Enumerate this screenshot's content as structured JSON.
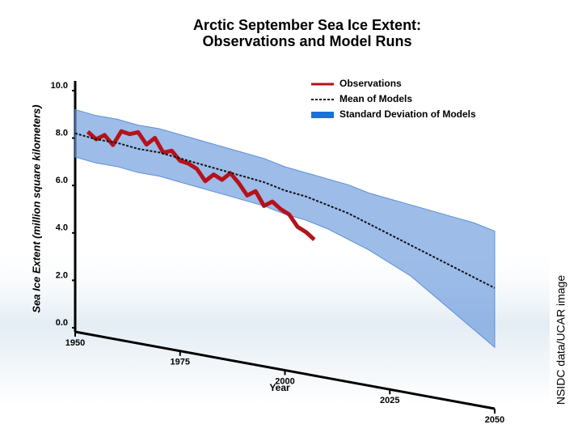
{
  "chart_data": {
    "type": "line",
    "title": [
      "Arctic September Sea Ice Extent:",
      "Observations and Model Runs"
    ],
    "xlabel": "Year",
    "ylabel": "Sea Ice Extent (million square kilometers)",
    "credit": "NSIDC data/UCAR image",
    "xlim": [
      1950,
      2050
    ],
    "xticks": [
      1950,
      1975,
      2000,
      2025,
      2050
    ],
    "ylim": [
      0,
      10
    ],
    "yticks": [
      {
        "value": 0,
        "label": "0.0"
      },
      {
        "value": 2,
        "label": "2.0"
      },
      {
        "value": 4,
        "label": "4.0"
      },
      {
        "value": 6,
        "label": "6.0"
      },
      {
        "value": 8,
        "label": "8.0"
      },
      {
        "value": 10,
        "label": "10.0"
      }
    ],
    "series": [
      {
        "name": "Observations",
        "color": "#b5121b",
        "x": [
          1953,
          1955,
          1957,
          1959,
          1961,
          1963,
          1965,
          1967,
          1969,
          1971,
          1973,
          1975,
          1977,
          1979,
          1981,
          1983,
          1985,
          1987,
          1989,
          1991,
          1993,
          1995,
          1997,
          1999,
          2001,
          2003,
          2005,
          2007
        ],
        "values": [
          8.3,
          8.0,
          8.2,
          7.8,
          8.4,
          8.3,
          8.4,
          7.9,
          8.2,
          7.6,
          7.7,
          7.3,
          7.2,
          7.0,
          6.5,
          6.8,
          6.6,
          6.9,
          6.5,
          6.0,
          6.2,
          5.6,
          5.8,
          5.5,
          5.3,
          4.8,
          4.6,
          4.3
        ]
      },
      {
        "name": "Mean of Models",
        "color": "#111111",
        "x": [
          1950,
          1955,
          1960,
          1965,
          1970,
          1975,
          1980,
          1985,
          1990,
          1995,
          2000,
          2005,
          2010,
          2015,
          2020,
          2025,
          2030,
          2035,
          2040,
          2045,
          2050
        ],
        "values": [
          8.2,
          8.0,
          7.9,
          7.7,
          7.6,
          7.4,
          7.2,
          7.0,
          6.8,
          6.6,
          6.3,
          6.1,
          5.8,
          5.5,
          5.1,
          4.7,
          4.3,
          3.9,
          3.5,
          3.1,
          2.7
        ]
      }
    ],
    "band": {
      "name": "Standard Deviation of Models",
      "color": "#5b8fd8",
      "x": [
        1950,
        1955,
        1960,
        1965,
        1970,
        1975,
        1980,
        1985,
        1990,
        1995,
        2000,
        2005,
        2010,
        2015,
        2020,
        2025,
        2030,
        2035,
        2040,
        2045,
        2050
      ],
      "upper": [
        9.2,
        9.0,
        8.9,
        8.7,
        8.6,
        8.4,
        8.2,
        8.0,
        7.8,
        7.6,
        7.3,
        7.1,
        6.9,
        6.7,
        6.4,
        6.2,
        6.0,
        5.8,
        5.6,
        5.4,
        5.1
      ],
      "lower": [
        7.2,
        7.0,
        6.9,
        6.7,
        6.6,
        6.4,
        6.2,
        6.0,
        5.8,
        5.6,
        5.3,
        5.1,
        4.8,
        4.4,
        4.0,
        3.5,
        3.0,
        2.3,
        1.6,
        0.9,
        0.2
      ]
    }
  }
}
